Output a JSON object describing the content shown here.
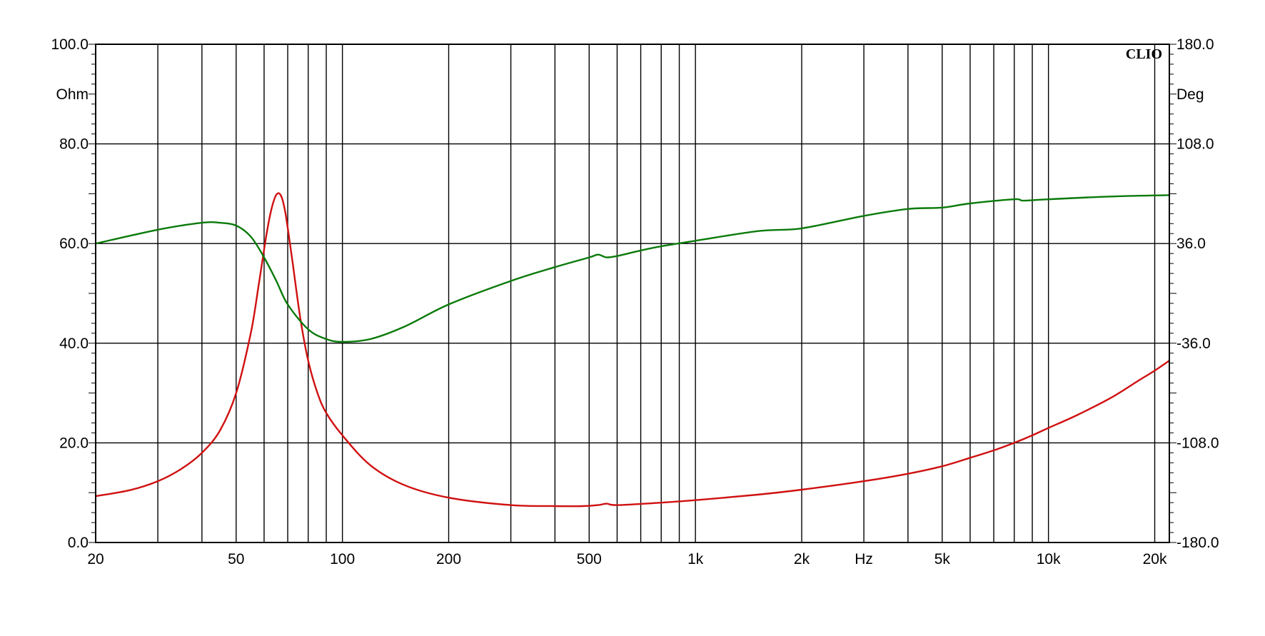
{
  "chart_data": {
    "type": "line",
    "brand": "CLIO",
    "x_scale": "log",
    "xlim": [
      20,
      22000
    ],
    "x_ticks": [
      {
        "value": 20,
        "label": "20"
      },
      {
        "value": 50,
        "label": "50"
      },
      {
        "value": 100,
        "label": "100"
      },
      {
        "value": 200,
        "label": "200"
      },
      {
        "value": 500,
        "label": "500"
      },
      {
        "value": 1000,
        "label": "1k"
      },
      {
        "value": 2000,
        "label": "2k"
      },
      {
        "value": 3000,
        "label": "Hz"
      },
      {
        "value": 5000,
        "label": "5k"
      },
      {
        "value": 10000,
        "label": "10k"
      },
      {
        "value": 20000,
        "label": "20k"
      }
    ],
    "x_grid": [
      20,
      30,
      40,
      50,
      60,
      70,
      80,
      90,
      100,
      200,
      300,
      400,
      500,
      600,
      700,
      800,
      900,
      1000,
      2000,
      3000,
      4000,
      5000,
      6000,
      7000,
      8000,
      9000,
      10000,
      20000
    ],
    "y_left": {
      "unit": "Ohm",
      "ylim": [
        0,
        100
      ],
      "ticks": [
        {
          "value": 0,
          "label": "0.0"
        },
        {
          "value": 20,
          "label": "20.0"
        },
        {
          "value": 40,
          "label": "40.0"
        },
        {
          "value": 60,
          "label": "60.0"
        },
        {
          "value": 80,
          "label": "80.0"
        },
        {
          "value": 100,
          "label": "100.0"
        }
      ]
    },
    "y_right": {
      "unit": "Deg",
      "ylim": [
        -180,
        180
      ],
      "ticks": [
        {
          "value": -180,
          "label": "-180.0"
        },
        {
          "value": -108,
          "label": "-108.0"
        },
        {
          "value": -36,
          "label": "-36.0"
        },
        {
          "value": 36,
          "label": "36.0"
        },
        {
          "value": 108,
          "label": "108.0"
        },
        {
          "value": 180,
          "label": "180.0"
        }
      ]
    },
    "grid": true,
    "series": [
      {
        "color": "#d01010",
        "axis": "left",
        "x": [
          20,
          25,
          30,
          35,
          40,
          45,
          50,
          55,
          58,
          61,
          63,
          65,
          67,
          69,
          72,
          76,
          80,
          85,
          90,
          100,
          120,
          150,
          200,
          300,
          400,
          480,
          530,
          560,
          600,
          800,
          1000,
          1500,
          2000,
          3000,
          4000,
          5000,
          6000,
          7000,
          8000,
          9000,
          10000,
          12000,
          15000,
          18000,
          20000,
          22000
        ],
        "y": [
          9.3,
          10.5,
          12.3,
          14.8,
          18.0,
          22.5,
          30.0,
          42.0,
          52.0,
          62.0,
          67.0,
          69.8,
          69.6,
          66.0,
          57.0,
          45.0,
          36.5,
          30.0,
          26.0,
          21.5,
          15.5,
          11.5,
          9.0,
          7.5,
          7.3,
          7.3,
          7.5,
          7.8,
          7.5,
          8.0,
          8.5,
          9.6,
          10.6,
          12.3,
          13.8,
          15.3,
          17.0,
          18.5,
          20.0,
          21.5,
          23.0,
          25.5,
          29.0,
          32.5,
          34.5,
          36.5
        ]
      },
      {
        "color": "#0a7a0a",
        "axis": "right",
        "x": [
          20,
          30,
          40,
          45,
          50,
          55,
          60,
          65,
          70,
          80,
          90,
          100,
          120,
          150,
          200,
          300,
          400,
          500,
          530,
          560,
          600,
          700,
          800,
          1000,
          1500,
          2000,
          3000,
          4000,
          5000,
          6000,
          8000,
          8500,
          10000,
          15000,
          22000
        ],
        "y": [
          36,
          46,
          51,
          51,
          49,
          41,
          26,
          9,
          -8,
          -26,
          -33,
          -35,
          -33,
          -24,
          -8,
          9,
          19,
          26,
          28,
          26,
          27,
          31,
          34,
          38,
          45,
          47,
          56,
          61,
          62,
          65,
          68,
          67,
          68,
          70,
          71
        ]
      }
    ]
  }
}
